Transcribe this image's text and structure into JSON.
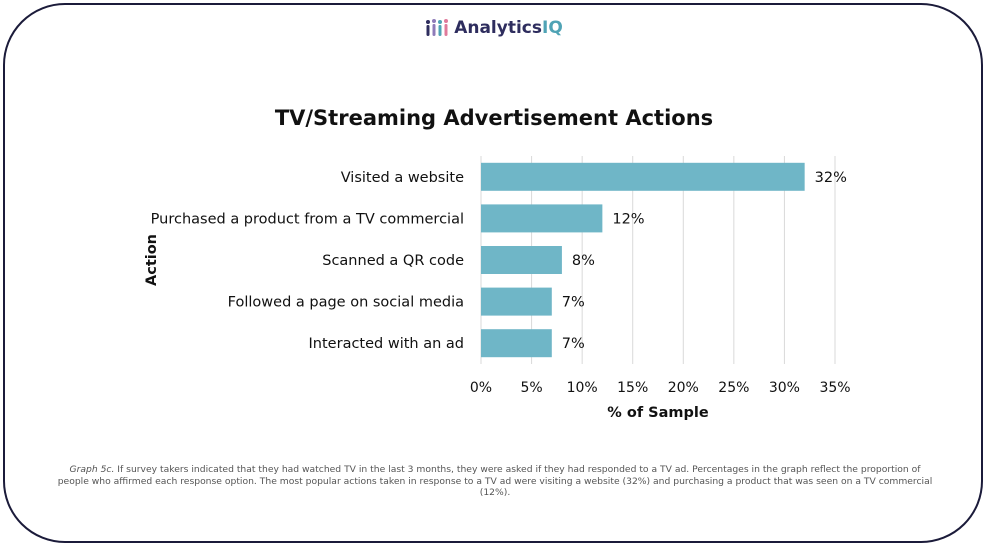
{
  "logo": {
    "name_part1": "Analytics",
    "name_part2": "IQ",
    "icon": "people-bars-icon"
  },
  "colors": {
    "bar": "#6fb6c7",
    "grid": "#d9d9d9",
    "text": "#111111",
    "brand_dark": "#2e2d5e",
    "brand_teal": "#4fa3b5"
  },
  "chart_data": {
    "type": "bar",
    "orientation": "horizontal",
    "title": "TV/Streaming Advertisement Actions",
    "xlabel": "% of Sample",
    "ylabel": "Action",
    "categories": [
      "Visited a website",
      "Purchased a product from a TV commercial",
      "Scanned a QR code",
      "Followed a page on social media",
      "Interacted with an ad"
    ],
    "values": [
      32,
      12,
      8,
      7,
      7
    ],
    "data_labels": [
      "32%",
      "12%",
      "8%",
      "7%",
      "7%"
    ],
    "xlim": [
      0,
      35
    ],
    "x_ticks": [
      "0%",
      "5%",
      "10%",
      "15%",
      "20%",
      "25%",
      "30%",
      "35%"
    ],
    "grid": "vertical",
    "legend": "none"
  },
  "caption": {
    "lead": "Graph 5c.",
    "text": " If survey takers indicated that they had watched TV in the last 3 months, they were asked if they had responded to a TV ad. Percentages in the graph reflect the proportion of people who affirmed each response option. The most popular actions taken in response to a TV ad were visiting a website (32%) and purchasing a product that was seen on a TV commercial (12%)."
  }
}
